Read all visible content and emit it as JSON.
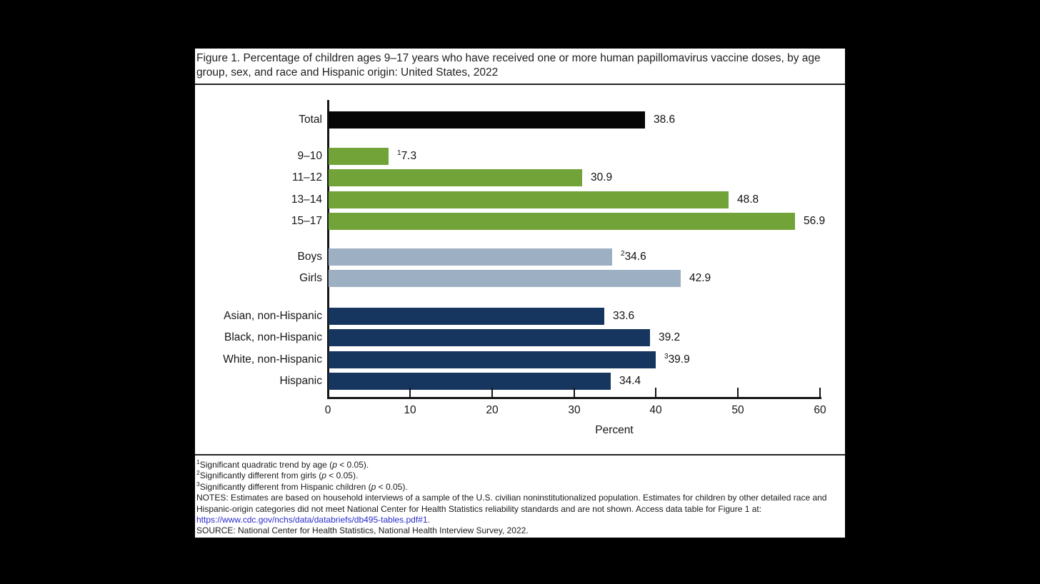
{
  "figure": {
    "title": "Figure 1. Percentage of children ages 9–17 years who have received one or more human papillomavirus vaccine doses, by age group, sex, and race and Hispanic origin: United States, 2022"
  },
  "chart_data": {
    "type": "bar",
    "orientation": "horizontal",
    "title": "Percentage of children ages 9–17 years who have received one or more HPV vaccine doses, by age group, sex, and race and Hispanic origin: United States, 2022",
    "xlabel": "Percent",
    "xlim": [
      0,
      60
    ],
    "xticks": [
      0,
      10,
      20,
      30,
      40,
      50,
      60
    ],
    "grid": false,
    "legend": false,
    "colors": {
      "total": "#060606",
      "age": "#71a338",
      "sex": "#9dafc2",
      "race": "#16365f"
    },
    "groups": [
      {
        "name": "total",
        "color_key": "total",
        "bars": [
          {
            "label": "Total",
            "value": 38.6,
            "display": "38.6",
            "sup": ""
          }
        ]
      },
      {
        "name": "age-group",
        "color_key": "age",
        "bars": [
          {
            "label": "9–10",
            "value": 7.3,
            "display": "7.3",
            "sup": "1"
          },
          {
            "label": "11–12",
            "value": 30.9,
            "display": "30.9",
            "sup": ""
          },
          {
            "label": "13–14",
            "value": 48.8,
            "display": "48.8",
            "sup": ""
          },
          {
            "label": "15–17",
            "value": 56.9,
            "display": "56.9",
            "sup": ""
          }
        ]
      },
      {
        "name": "sex",
        "color_key": "sex",
        "bars": [
          {
            "label": "Boys",
            "value": 34.6,
            "display": "34.6",
            "sup": "2"
          },
          {
            "label": "Girls",
            "value": 42.9,
            "display": "42.9",
            "sup": ""
          }
        ]
      },
      {
        "name": "race-hispanic-origin",
        "color_key": "race",
        "bars": [
          {
            "label": "Asian, non-Hispanic",
            "value": 33.6,
            "display": "33.6",
            "sup": ""
          },
          {
            "label": "Black, non-Hispanic",
            "value": 39.2,
            "display": "39.2",
            "sup": ""
          },
          {
            "label": "White, non-Hispanic",
            "value": 39.9,
            "display": "39.9",
            "sup": "3"
          },
          {
            "label": "Hispanic",
            "value": 34.4,
            "display": "34.4",
            "sup": ""
          }
        ]
      }
    ]
  },
  "footnotes": [
    {
      "sup": "1",
      "before": "Significant quadratic trend by age (",
      "italic": "p",
      "after": " < 0.05)."
    },
    {
      "sup": "2",
      "before": "Significantly different from girls (",
      "italic": "p",
      "after": " < 0.05)."
    },
    {
      "sup": "3",
      "before": "Significantly different from Hispanic children (",
      "italic": "p",
      "after": " < 0.05)."
    }
  ],
  "notes": {
    "text": "NOTES: Estimates are based on household interviews of a sample of the U.S. civilian noninstitutionalized population. Estimates for children by other detailed race and Hispanic-origin categories did not meet National Center for Health Statistics reliability standards and are not shown. Access data table for Figure 1 at:",
    "link": "https://www.cdc.gov/nchs/data/databriefs/db495-tables.pdf#1",
    "link_suffix": ".",
    "source": "SOURCE: National Center for Health Statistics, National Health Interview Survey, 2022."
  }
}
